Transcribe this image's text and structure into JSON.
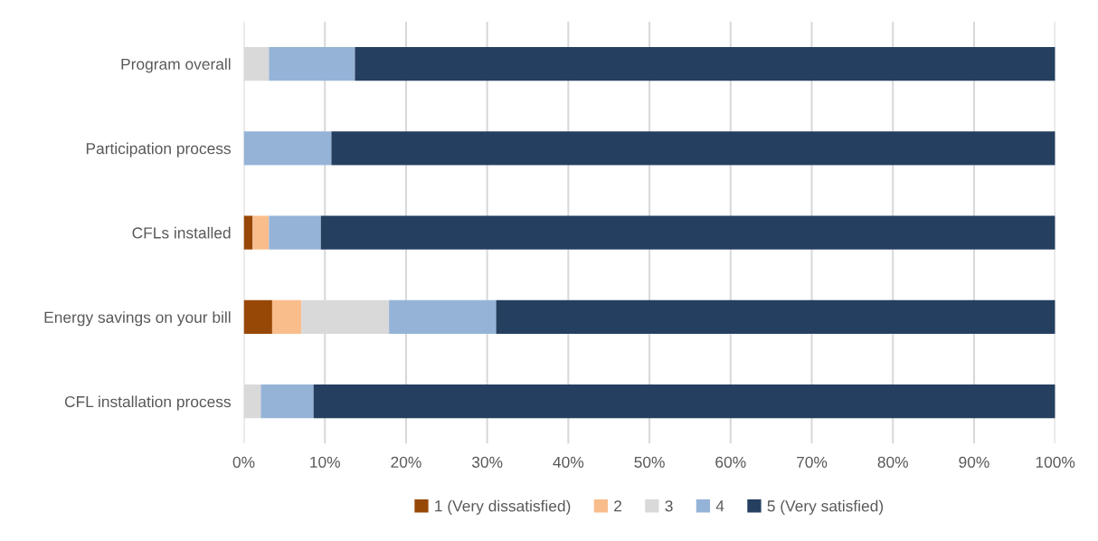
{
  "chart_data": {
    "type": "bar",
    "orientation": "horizontal",
    "stacked": true,
    "categories": [
      "Program overall",
      "Participation process",
      "CFLs installed",
      "Energy savings on your bill",
      "CFL installation process"
    ],
    "series": [
      {
        "name": "1 (Very dissatisfied)",
        "color": "#974706",
        "values": [
          0,
          0,
          1.1,
          3.5,
          0
        ]
      },
      {
        "name": "2",
        "color": "#f9bd8c",
        "values": [
          0,
          0,
          2.0,
          3.6,
          0
        ]
      },
      {
        "name": "3",
        "color": "#d9d9d9",
        "values": [
          3.1,
          0,
          0,
          10.8,
          2.1
        ]
      },
      {
        "name": "4",
        "color": "#95b3d7",
        "values": [
          10.6,
          10.8,
          6.4,
          13.2,
          6.5
        ]
      },
      {
        "name": "5 (Very satisfied)",
        "color": "#243f60",
        "values": [
          86.3,
          89.2,
          90.5,
          68.9,
          91.4
        ]
      }
    ],
    "xlim": [
      0,
      100
    ],
    "xticks": [
      {
        "value": 0,
        "label": "0%"
      },
      {
        "value": 10,
        "label": "10%"
      },
      {
        "value": 20,
        "label": "20%"
      },
      {
        "value": 30,
        "label": "30%"
      },
      {
        "value": 40,
        "label": "40%"
      },
      {
        "value": 50,
        "label": "50%"
      },
      {
        "value": 60,
        "label": "60%"
      },
      {
        "value": 70,
        "label": "70%"
      },
      {
        "value": 80,
        "label": "80%"
      },
      {
        "value": 90,
        "label": "90%"
      },
      {
        "value": 100,
        "label": "100%"
      }
    ],
    "grid": "x",
    "legend": "bottom"
  }
}
